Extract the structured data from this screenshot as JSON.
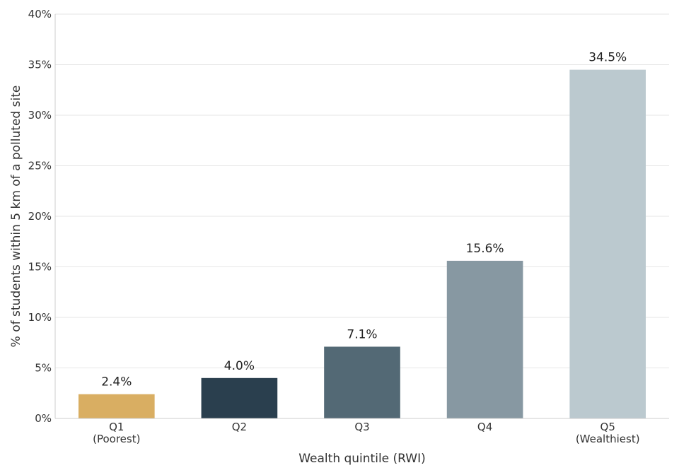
{
  "chart_data": {
    "type": "bar",
    "title": "",
    "xlabel": "Wealth quintile (RWI)",
    "ylabel": "% of students within 5 km of a polluted site",
    "ylim": [
      0,
      40
    ],
    "y_ticks": [
      0,
      5,
      10,
      15,
      20,
      25,
      30,
      35,
      40
    ],
    "y_tick_labels": [
      "0%",
      "5%",
      "10%",
      "15%",
      "20%",
      "25%",
      "30%",
      "35%",
      "40%"
    ],
    "grid": true,
    "legend": "none",
    "categories": [
      {
        "label": "Q1",
        "sublabel": "(Poorest)"
      },
      {
        "label": "Q2",
        "sublabel": ""
      },
      {
        "label": "Q3",
        "sublabel": ""
      },
      {
        "label": "Q4",
        "sublabel": ""
      },
      {
        "label": "Q5",
        "sublabel": "(Wealthiest)"
      }
    ],
    "values": [
      2.4,
      4.0,
      7.1,
      15.6,
      34.5
    ],
    "value_labels": [
      "2.4%",
      "4.0%",
      "7.1%",
      "15.6%",
      "34.5%"
    ],
    "colors": [
      "#d9ae62",
      "#2a3f4e",
      "#536975",
      "#8798a2",
      "#bbc9cf"
    ]
  }
}
